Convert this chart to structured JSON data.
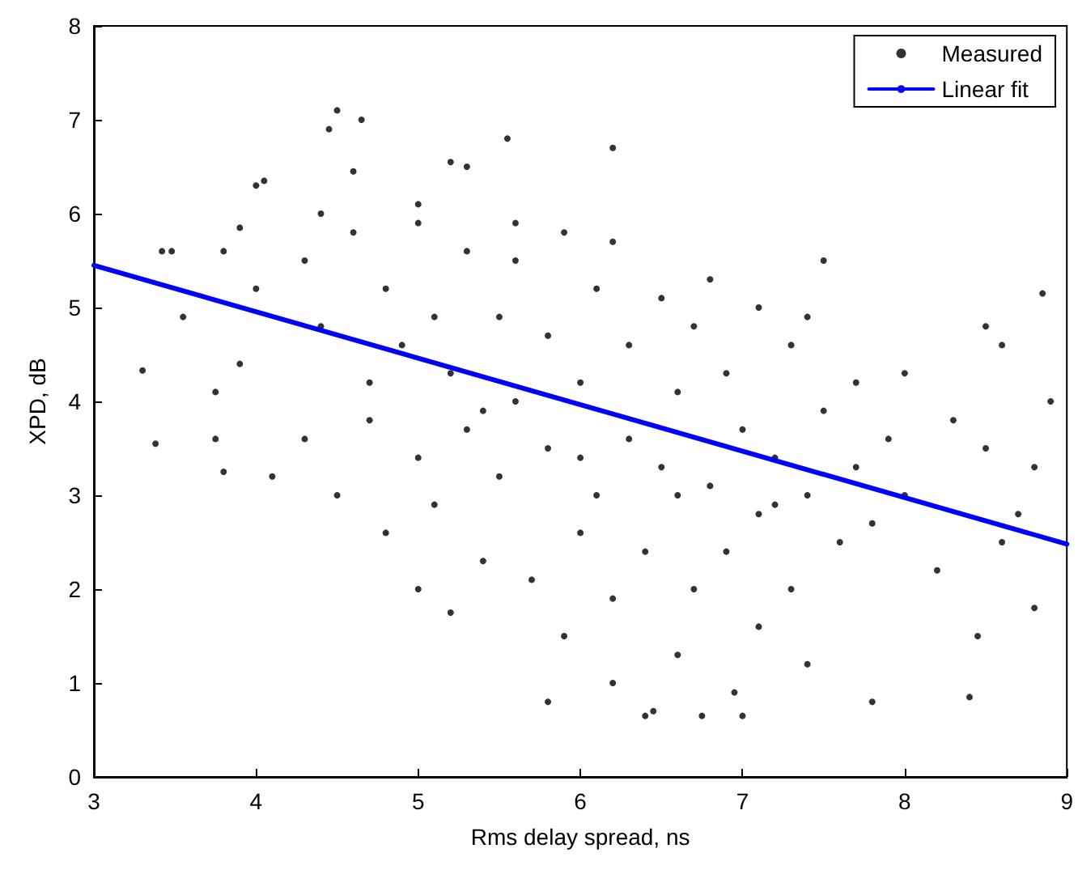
{
  "chart_data": {
    "type": "scatter",
    "xlabel": "Rms delay spread, ns",
    "ylabel": "XPD, dB",
    "xlim": [
      3,
      9
    ],
    "xticks": [
      3,
      4,
      5,
      6,
      7,
      8,
      9
    ],
    "ylim": [
      0,
      8
    ],
    "yticks": [
      0,
      1,
      2,
      3,
      4,
      5,
      6,
      7,
      8
    ],
    "grid": false,
    "legend": "top right",
    "series": [
      {
        "name": "Measured",
        "marker": "circle",
        "color": "#000000",
        "x": [
          3.3,
          3.38,
          3.42,
          3.48,
          3.55,
          3.75,
          3.8,
          4.1,
          3.75,
          3.9,
          4.0,
          3.9,
          3.8,
          4.05,
          4.0,
          4.45,
          4.5,
          4.65,
          4.6,
          5.2,
          5.3,
          5.55,
          6.2,
          7.5,
          8.5,
          8.85,
          8.6,
          5.8,
          6.4,
          6.45,
          6.75,
          7.0,
          6.95,
          7.8,
          8.4,
          6.2,
          6.6,
          7.4,
          5.2,
          5.0,
          8.45,
          8.8,
          5.9,
          7.1,
          8.8,
          8.9,
          8.7,
          8.6,
          8.3,
          8.2,
          8.0,
          8.0,
          8.5,
          4.3,
          4.3,
          4.4,
          4.5,
          4.6,
          4.7,
          4.8,
          4.8,
          4.9,
          5.0,
          5.0,
          5.1,
          5.1,
          5.2,
          5.3,
          5.3,
          5.4,
          5.5,
          5.5,
          5.6,
          5.6,
          5.7,
          5.8,
          5.8,
          5.9,
          6.0,
          6.0,
          6.1,
          6.1,
          6.2,
          6.3,
          6.3,
          6.4,
          6.5,
          6.5,
          6.6,
          6.7,
          6.7,
          6.8,
          6.9,
          6.9,
          7.0,
          7.1,
          7.1,
          7.2,
          7.3,
          7.3,
          7.4,
          7.5,
          7.6,
          7.7,
          7.7,
          7.8,
          7.9,
          4.4,
          5.0,
          5.6,
          6.2,
          6.8,
          7.4,
          4.7,
          5.4,
          6.0,
          6.6,
          7.2
        ],
        "values": [
          4.33,
          3.55,
          5.6,
          5.6,
          4.9,
          3.6,
          3.25,
          3.2,
          4.1,
          4.4,
          5.2,
          5.85,
          5.6,
          6.35,
          6.3,
          6.9,
          7.1,
          7.0,
          6.45,
          6.55,
          6.5,
          6.8,
          6.7,
          5.5,
          4.8,
          5.15,
          4.6,
          0.8,
          0.65,
          0.7,
          0.65,
          0.65,
          0.9,
          0.8,
          0.85,
          1.0,
          1.3,
          1.2,
          1.75,
          2.0,
          1.5,
          1.8,
          1.5,
          1.6,
          3.3,
          4.0,
          2.8,
          2.5,
          3.8,
          2.2,
          3.0,
          4.3,
          3.5,
          5.5,
          3.6,
          4.8,
          3.0,
          5.8,
          4.2,
          2.6,
          5.2,
          4.6,
          3.4,
          5.9,
          4.9,
          2.9,
          4.3,
          5.6,
          3.7,
          2.3,
          4.9,
          3.2,
          5.5,
          4.0,
          2.1,
          4.7,
          3.5,
          5.8,
          2.6,
          4.2,
          5.2,
          3.0,
          1.9,
          4.6,
          3.6,
          2.4,
          5.1,
          3.3,
          4.1,
          2.0,
          4.8,
          3.1,
          4.3,
          2.4,
          3.7,
          5.0,
          2.8,
          3.4,
          2.0,
          4.6,
          3.0,
          3.9,
          2.5,
          4.2,
          3.3,
          2.7,
          3.6,
          6.0,
          6.1,
          5.9,
          5.7,
          5.3,
          4.9,
          3.8,
          3.9,
          3.4,
          3.0,
          2.9
        ]
      },
      {
        "name": "Linear fit",
        "type": "line",
        "color": "#0000ff",
        "line_style": "solid",
        "marker": "none",
        "x": [
          3,
          9
        ],
        "values": [
          5.45,
          2.48
        ]
      }
    ]
  }
}
